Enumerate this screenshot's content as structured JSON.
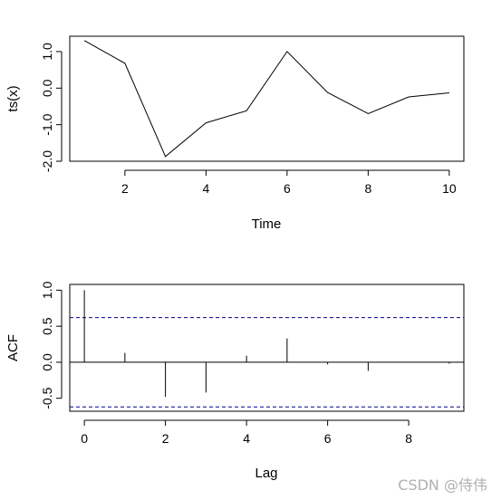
{
  "chart_data": [
    {
      "type": "line",
      "xlabel": "Time",
      "ylabel": "ts(x)",
      "x": [
        1,
        2,
        3,
        4,
        5,
        6,
        7,
        8,
        9,
        10
      ],
      "y": [
        1.3,
        0.68,
        -1.87,
        -0.95,
        -0.62,
        1.0,
        -0.12,
        -0.7,
        -0.24,
        -0.13
      ],
      "xticks": [
        2,
        4,
        6,
        8,
        10
      ],
      "yticks": [
        -2.0,
        -1.0,
        0.0,
        1.0
      ],
      "ytick_labels": [
        "-2.0",
        "-1.0",
        "0.0",
        "1.0"
      ],
      "xlim": [
        0.64,
        10.36
      ],
      "ylim": [
        -2.0,
        1.42
      ],
      "grid": false
    },
    {
      "type": "bar",
      "xlabel": "Lag",
      "ylabel": "ACF",
      "lags": [
        0,
        1,
        2,
        3,
        4,
        5,
        6,
        7,
        8,
        9
      ],
      "values": [
        1.0,
        0.13,
        -0.48,
        -0.42,
        0.09,
        0.33,
        -0.03,
        -0.12,
        0.0,
        -0.02
      ],
      "confidence_bound": 0.62,
      "xticks": [
        0,
        2,
        4,
        6,
        8
      ],
      "yticks": [
        -0.5,
        0.0,
        0.5,
        1.0
      ],
      "ytick_labels": [
        "-0.5",
        "0.0",
        "0.5",
        "1.0"
      ],
      "xlim": [
        -0.36,
        9.36
      ],
      "ylim": [
        -0.68,
        1.08
      ],
      "grid": false
    }
  ],
  "watermark": "CSDN @侍伟",
  "colors": {
    "line": "#000000",
    "ci": "#00008b",
    "axes": "#000000"
  }
}
